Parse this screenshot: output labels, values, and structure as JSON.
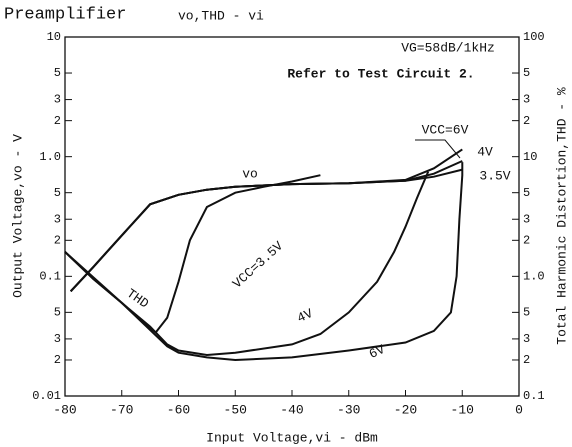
{
  "chart_data": {
    "type": "line",
    "title": "Preamplifier",
    "subtitle": "vo,THD - vi",
    "x_label": "Input Voltage,vi - dBm",
    "y_label": "Output Voltage,vo - V",
    "y2_label": "Total Harmonic Distortion,THD - %",
    "annotations": [
      "VG=58dB/1kHz",
      "Refer to Test Circuit 2.",
      "vo",
      "THD",
      "VCC=6V",
      "4V",
      "3.5V",
      "VCC=3.5V",
      "4V",
      "6V"
    ],
    "log_y": true,
    "log_y2": true,
    "grid": false,
    "xlim": [
      -80,
      0
    ],
    "xticks": [
      -80,
      -70,
      -60,
      -50,
      -40,
      -30,
      -20,
      -10,
      0
    ],
    "ylim": [
      0.01,
      10
    ],
    "yticks": [
      10,
      {
        "value": 5,
        "label": "5"
      },
      {
        "value": 3,
        "label": "3"
      },
      {
        "value": 2,
        "label": "2"
      },
      {
        "value": 1,
        "label": "1.0"
      },
      {
        "value": 0.5,
        "label": "5"
      },
      {
        "value": 0.3,
        "label": "3"
      },
      {
        "value": 0.2,
        "label": "2"
      },
      0.1,
      {
        "value": 0.05,
        "label": "5"
      },
      {
        "value": 0.03,
        "label": "3"
      },
      {
        "value": 0.02,
        "label": "2"
      },
      0.01
    ],
    "y2lim": [
      0.1,
      100
    ],
    "y2ticks": [
      100,
      {
        "value": 50,
        "label": "5"
      },
      {
        "value": 30,
        "label": "3"
      },
      {
        "value": 20,
        "label": "2"
      },
      10,
      {
        "value": 5,
        "label": "5"
      },
      {
        "value": 3,
        "label": "3"
      },
      {
        "value": 2,
        "label": "2"
      },
      {
        "value": 1,
        "label": "1.0"
      },
      {
        "value": 0.5,
        "label": "5"
      },
      {
        "value": 0.3,
        "label": "3"
      },
      {
        "value": 0.2,
        "label": "2"
      },
      0.1
    ],
    "series": [
      {
        "name": "vo VCC=3.5V",
        "color": "#111111",
        "x": [
          -79,
          -75,
          -70,
          -65,
          -60,
          -55,
          -50,
          -40,
          -30,
          -20,
          -15,
          -10
        ],
        "values": [
          0.075,
          0.12,
          0.22,
          0.4,
          0.48,
          0.53,
          0.56,
          0.59,
          0.6,
          0.63,
          0.68,
          0.78
        ]
      },
      {
        "name": "vo VCC=4V",
        "color": "#111111",
        "x": [
          -79,
          -75,
          -70,
          -65,
          -60,
          -55,
          -50,
          -40,
          -30,
          -20,
          -15,
          -10
        ],
        "values": [
          0.075,
          0.12,
          0.22,
          0.4,
          0.48,
          0.53,
          0.56,
          0.59,
          0.6,
          0.63,
          0.72,
          0.92
        ]
      },
      {
        "name": "vo VCC=6V",
        "color": "#111111",
        "x": [
          -79,
          -75,
          -70,
          -65,
          -60,
          -55,
          -50,
          -40,
          -30,
          -20,
          -15,
          -10
        ],
        "values": [
          0.075,
          0.12,
          0.22,
          0.4,
          0.48,
          0.53,
          0.56,
          0.59,
          0.6,
          0.64,
          0.8,
          1.15
        ]
      },
      {
        "name": "THD VCC=3.5V",
        "color": "#111111",
        "axis": "y2",
        "x": [
          -80,
          -75,
          -70,
          -66,
          -64,
          -62,
          -60,
          -58,
          -55,
          -50,
          -45,
          -40,
          -35
        ],
        "values": [
          1.6,
          0.95,
          0.6,
          0.4,
          0.34,
          0.45,
          0.9,
          2,
          3.8,
          5,
          5.6,
          6.2,
          7
        ]
      },
      {
        "name": "THD VCC=4V",
        "color": "#111111",
        "axis": "y2",
        "x": [
          -80,
          -75,
          -70,
          -65,
          -62,
          -60,
          -55,
          -50,
          -40,
          -35,
          -30,
          -25,
          -22,
          -20,
          -18,
          -16
        ],
        "values": [
          1.6,
          0.95,
          0.6,
          0.38,
          0.27,
          0.24,
          0.22,
          0.23,
          0.27,
          0.33,
          0.5,
          0.9,
          1.6,
          2.6,
          4.5,
          7.5
        ]
      },
      {
        "name": "THD VCC=6V",
        "color": "#111111",
        "axis": "y2",
        "x": [
          -80,
          -70,
          -62,
          -60,
          -55,
          -50,
          -40,
          -30,
          -20,
          -15,
          -12,
          -11,
          -10.5,
          -10,
          -10
        ],
        "values": [
          1.6,
          0.6,
          0.26,
          0.23,
          0.21,
          0.2,
          0.21,
          0.24,
          0.28,
          0.35,
          0.5,
          1,
          3,
          7,
          9
        ]
      }
    ]
  }
}
